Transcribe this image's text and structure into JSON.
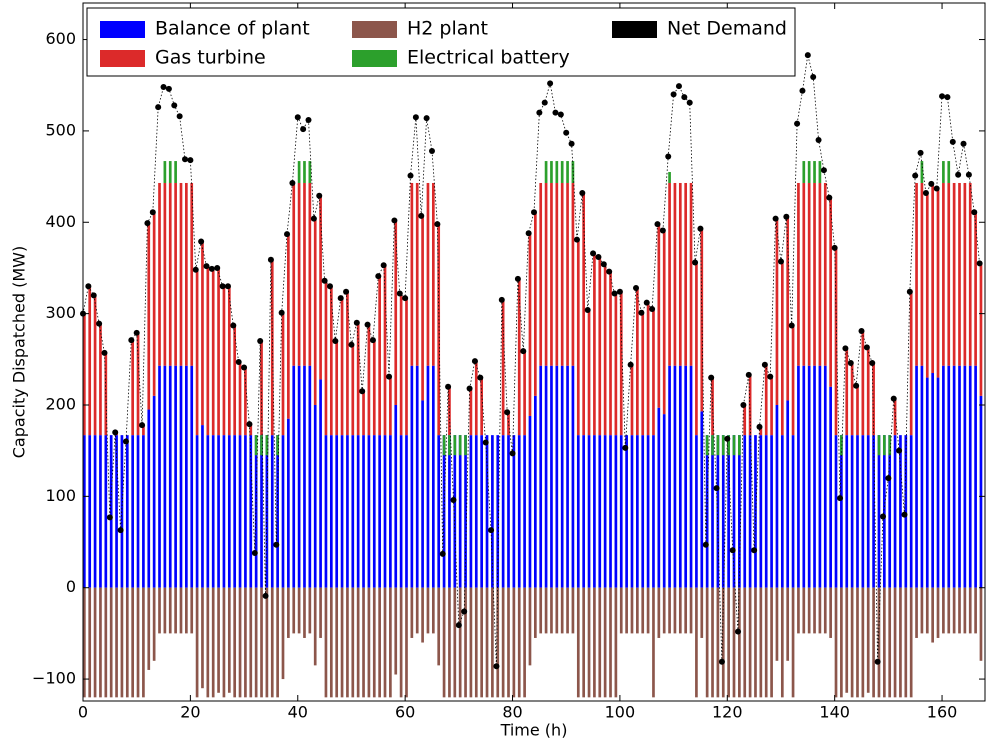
{
  "chart_data": {
    "type": "stacked-bar",
    "x_label": "Time (h)",
    "y_label": "Capacity Dispatched (MW)",
    "xlim": [
      0,
      168
    ],
    "ylim": [
      -124,
      640
    ],
    "xticks": [
      0,
      20,
      40,
      60,
      80,
      100,
      120,
      140,
      160
    ],
    "yticks": [
      {
        "value": -100,
        "label": "−100"
      },
      0,
      100,
      200,
      300,
      400,
      500,
      600
    ],
    "legend": "upper left",
    "x": [
      0,
      1,
      2,
      3,
      4,
      5,
      6,
      7,
      8,
      9,
      10,
      11,
      12,
      13,
      14,
      15,
      16,
      17,
      18,
      19,
      20,
      21,
      22,
      23,
      24,
      25,
      26,
      27,
      28,
      29,
      30,
      31,
      32,
      33,
      34,
      35,
      36,
      37,
      38,
      39,
      40,
      41,
      42,
      43,
      44,
      45,
      46,
      47,
      48,
      49,
      50,
      51,
      52,
      53,
      54,
      55,
      56,
      57,
      58,
      59,
      60,
      61,
      62,
      63,
      64,
      65,
      66,
      67,
      68,
      69,
      70,
      71,
      72,
      73,
      74,
      75,
      76,
      77,
      78,
      79,
      80,
      81,
      82,
      83,
      84,
      85,
      86,
      87,
      88,
      89,
      90,
      91,
      92,
      93,
      94,
      95,
      96,
      97,
      98,
      99,
      100,
      101,
      102,
      103,
      104,
      105,
      106,
      107,
      108,
      109,
      110,
      111,
      112,
      113,
      114,
      115,
      116,
      117,
      118,
      119,
      120,
      121,
      122,
      123,
      124,
      125,
      126,
      127,
      128,
      129,
      130,
      131,
      132,
      133,
      134,
      135,
      136,
      137,
      138,
      139,
      140,
      141,
      142,
      143,
      144,
      145,
      146,
      147,
      148,
      149,
      150,
      151,
      152,
      153,
      154,
      155,
      156,
      157,
      158,
      159,
      160,
      161,
      162,
      163,
      164,
      165,
      166,
      167
    ],
    "series": [
      {
        "name": "Balance of plant",
        "color": "#0000ff",
        "values": [
          167,
          167,
          167,
          167,
          167,
          167,
          167,
          167,
          167,
          167,
          167,
          167,
          195,
          210,
          243,
          243,
          243,
          243,
          243,
          243,
          243,
          167,
          178,
          167,
          167,
          167,
          167,
          167,
          167,
          167,
          167,
          167,
          167,
          167,
          167,
          167,
          167,
          167,
          185,
          243,
          243,
          243,
          243,
          200,
          228,
          167,
          167,
          167,
          167,
          167,
          167,
          167,
          167,
          167,
          167,
          167,
          167,
          167,
          200,
          167,
          167,
          243,
          243,
          205,
          243,
          243,
          167,
          167,
          167,
          167,
          167,
          167,
          167,
          167,
          167,
          167,
          167,
          167,
          167,
          167,
          167,
          167,
          167,
          188,
          210,
          243,
          243,
          243,
          243,
          243,
          243,
          243,
          167,
          167,
          167,
          167,
          167,
          167,
          167,
          167,
          167,
          167,
          167,
          167,
          167,
          167,
          167,
          197,
          190,
          243,
          243,
          243,
          243,
          243,
          167,
          193,
          167,
          167,
          167,
          167,
          167,
          167,
          167,
          167,
          167,
          167,
          167,
          167,
          167,
          200,
          167,
          205,
          167,
          243,
          243,
          243,
          243,
          243,
          243,
          220,
          167,
          167,
          167,
          167,
          167,
          167,
          167,
          167,
          167,
          167,
          167,
          167,
          167,
          167,
          167,
          243,
          243,
          230,
          235,
          230,
          243,
          243,
          243,
          243,
          243,
          243,
          243,
          210
        ]
      },
      {
        "name": "Gas turbine",
        "color": "#dc2a2a",
        "values": [
          133,
          163,
          153,
          122,
          90,
          0,
          3,
          0,
          0,
          104,
          112,
          11,
          204,
          201,
          200,
          200,
          200,
          200,
          200,
          200,
          200,
          181,
          201,
          185,
          182,
          183,
          163,
          163,
          120,
          80,
          74,
          12,
          0,
          103,
          0,
          192,
          0,
          134,
          202,
          200,
          200,
          200,
          200,
          204,
          201,
          169,
          163,
          103,
          150,
          157,
          99,
          123,
          48,
          121,
          104,
          174,
          186,
          64,
          202,
          155,
          150,
          200,
          200,
          202,
          200,
          200,
          231,
          0,
          53,
          0,
          0,
          0,
          51,
          81,
          63,
          0,
          0,
          0,
          148,
          25,
          0,
          171,
          92,
          200,
          201,
          200,
          200,
          200,
          200,
          200,
          200,
          200,
          214,
          265,
          137,
          199,
          195,
          187,
          179,
          155,
          157,
          0,
          77,
          161,
          134,
          145,
          138,
          201,
          201,
          200,
          200,
          200,
          200,
          200,
          189,
          200,
          0,
          63,
          0,
          0,
          0,
          0,
          0,
          33,
          66,
          0,
          9,
          77,
          64,
          204,
          190,
          201,
          120,
          200,
          200,
          200,
          200,
          200,
          200,
          207,
          205,
          0,
          95,
          79,
          54,
          114,
          96,
          79,
          0,
          0,
          0,
          40,
          0,
          0,
          157,
          200,
          200,
          202,
          207,
          207,
          200,
          200,
          200,
          200,
          200,
          200,
          168,
          145
        ]
      },
      {
        "name": "H2 plant",
        "color": "#8c564b",
        "values": [
          -120,
          -120,
          -120,
          -120,
          -120,
          -120,
          -120,
          -120,
          -120,
          -120,
          -120,
          -120,
          -90,
          -80,
          -50,
          -50,
          -50,
          -50,
          -50,
          -50,
          -50,
          -120,
          -110,
          -120,
          -120,
          -115,
          -120,
          -115,
          -120,
          -120,
          -120,
          -120,
          -120,
          -120,
          -120,
          -120,
          -120,
          -100,
          -55,
          -50,
          -50,
          -55,
          -50,
          -85,
          -55,
          -120,
          -120,
          -120,
          -120,
          -120,
          -120,
          -120,
          -120,
          -120,
          -120,
          -120,
          -120,
          -120,
          -95,
          -120,
          -120,
          -55,
          -50,
          -60,
          -50,
          -50,
          -85,
          -120,
          -120,
          -120,
          -120,
          -120,
          -120,
          -120,
          -120,
          -120,
          -120,
          -120,
          -120,
          -120,
          -120,
          -120,
          -120,
          -85,
          -55,
          -50,
          -50,
          -50,
          -50,
          -50,
          -50,
          -50,
          -120,
          -120,
          -120,
          -120,
          -120,
          -120,
          -120,
          -120,
          -50,
          -50,
          -50,
          -50,
          -50,
          -50,
          -120,
          -55,
          -50,
          -50,
          -50,
          -50,
          -50,
          -50,
          -120,
          -55,
          -120,
          -120,
          -120,
          -120,
          -120,
          -120,
          -120,
          -120,
          -120,
          -120,
          -120,
          -120,
          -120,
          -80,
          -120,
          -80,
          -120,
          -50,
          -50,
          -50,
          -50,
          -50,
          -50,
          -55,
          -120,
          -120,
          -115,
          -120,
          -120,
          -120,
          -115,
          -120,
          -120,
          -120,
          -120,
          -120,
          -120,
          -120,
          -120,
          -55,
          -50,
          -50,
          -60,
          -55,
          -50,
          -50,
          -50,
          -50,
          -50,
          -50,
          -50,
          -80
        ]
      },
      {
        "name": "Electrical battery",
        "color": "#2ca02c",
        "values": [
          0,
          0,
          0,
          0,
          0,
          0,
          0,
          0,
          0,
          0,
          0,
          0,
          0,
          0,
          0,
          24,
          24,
          24,
          0,
          0,
          0,
          0,
          0,
          0,
          0,
          0,
          0,
          0,
          0,
          0,
          0,
          0,
          -22,
          -22,
          -22,
          0,
          -22,
          0,
          0,
          0,
          24,
          24,
          24,
          0,
          0,
          0,
          0,
          0,
          0,
          0,
          0,
          0,
          0,
          0,
          0,
          0,
          0,
          0,
          0,
          0,
          0,
          0,
          0,
          0,
          0,
          0,
          0,
          -22,
          -22,
          -22,
          -22,
          -22,
          0,
          0,
          0,
          0,
          0,
          0,
          0,
          0,
          0,
          0,
          0,
          0,
          0,
          0,
          24,
          24,
          24,
          24,
          24,
          24,
          0,
          0,
          0,
          0,
          0,
          0,
          0,
          0,
          0,
          0,
          0,
          0,
          0,
          0,
          0,
          0,
          0,
          12,
          0,
          0,
          0,
          0,
          0,
          0,
          -22,
          -22,
          -22,
          -22,
          -22,
          -22,
          -22,
          0,
          0,
          0,
          0,
          0,
          0,
          0,
          0,
          0,
          0,
          0,
          24,
          24,
          24,
          24,
          0,
          0,
          0,
          -22,
          0,
          0,
          0,
          0,
          0,
          0,
          -22,
          -22,
          -22,
          0,
          0,
          0,
          0,
          0,
          24,
          0,
          0,
          0,
          24,
          24,
          0,
          0,
          0,
          0,
          0,
          0
        ]
      }
    ],
    "line": {
      "name": "Net Demand",
      "color": "#000000",
      "values": [
        300,
        330,
        320,
        289,
        257,
        77,
        170,
        63,
        160,
        271,
        279,
        178,
        399,
        411,
        526,
        548,
        546,
        528,
        516,
        469,
        468,
        348,
        379,
        352,
        349,
        350,
        330,
        330,
        287,
        247,
        241,
        179,
        38,
        270,
        -9,
        359,
        47,
        301,
        387,
        443,
        515,
        502,
        512,
        404,
        429,
        336,
        330,
        270,
        317,
        324,
        266,
        290,
        215,
        288,
        271,
        341,
        353,
        231,
        402,
        322,
        317,
        451,
        515,
        407,
        514,
        478,
        398,
        37,
        220,
        96,
        -41,
        -26,
        218,
        248,
        230,
        159,
        63,
        -86,
        315,
        192,
        147,
        338,
        259,
        388,
        411,
        520,
        531,
        552,
        520,
        518,
        498,
        486,
        381,
        432,
        304,
        366,
        362,
        354,
        346,
        322,
        324,
        153,
        244,
        328,
        301,
        312,
        305,
        398,
        391,
        472,
        540,
        549,
        537,
        531,
        356,
        393,
        47,
        230,
        109,
        -81,
        163,
        41,
        -48,
        200,
        233,
        41,
        176,
        244,
        231,
        404,
        357,
        406,
        287,
        508,
        544,
        583,
        559,
        490,
        457,
        427,
        372,
        98,
        262,
        246,
        221,
        281,
        263,
        246,
        -81,
        78,
        120,
        207,
        150,
        80,
        324,
        451,
        476,
        432,
        442,
        437,
        538,
        537,
        488,
        452,
        486,
        452,
        411,
        355
      ]
    }
  }
}
